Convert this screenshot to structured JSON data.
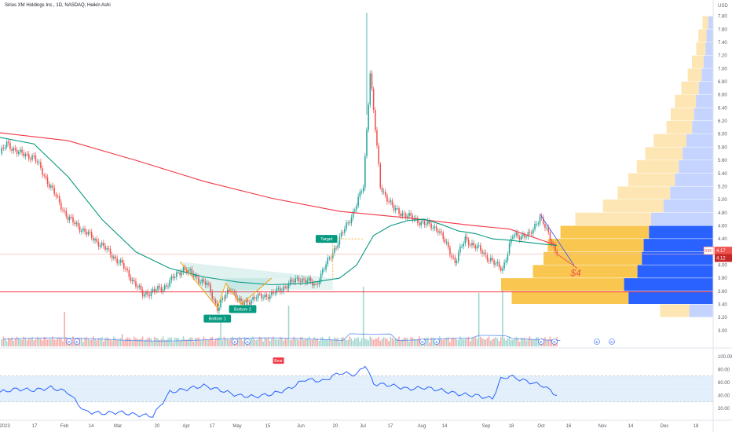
{
  "header": {
    "title": "Sirius XM Holdings Inc., 1D, NASDAQ, Heikin Ashi"
  },
  "colors": {
    "up": "#26a69a",
    "down": "#ef5350",
    "ma_fast": "#089981",
    "ma_slow": "#f23645",
    "volume_ma": "#5b8def",
    "profile_value": "#f9c74f",
    "profile_value_light": "#fde6b3",
    "profile_blue": "#2962ff",
    "profile_blue_light": "#c5d4ff",
    "rsi_line": "#2962ff",
    "rsi_band": "#e3f0fb",
    "support_line": "#f23645",
    "axis_text": "#555b66"
  },
  "chart_data": {
    "type": "candlestick",
    "title": "Sirius XM Holdings Inc., 1D, NASDAQ, Heikin Ashi",
    "currency_label": "USD",
    "price_axis": {
      "range": [
        2.95,
        7.88
      ],
      "ticks": [
        "7.80",
        "7.60",
        "7.40",
        "7.20",
        "7.00",
        "6.80",
        "6.60",
        "6.40",
        "6.20",
        "6.00",
        "5.80",
        "5.60",
        "5.40",
        "5.20",
        "5.00",
        "4.80",
        "4.60",
        "4.40",
        "4.20",
        "4.00",
        "3.80",
        "3.60",
        "3.40",
        "3.20",
        "3.00"
      ]
    },
    "time_axis": {
      "labels": [
        "2023",
        "17",
        "Feb",
        "14",
        "Mar",
        "20",
        "Apr",
        "17",
        "May",
        "15",
        "Jun",
        "20",
        "Jul",
        "17",
        "Aug",
        "14",
        "Sep",
        "18",
        "Oct",
        "16",
        "Nov",
        "14",
        "Dec",
        "18"
      ]
    },
    "symbol_tag": "SIRI",
    "last_price_labels": [
      "4.17",
      "4.12"
    ],
    "support_level": 3.59,
    "segments": [
      {
        "from": 0,
        "to": 4,
        "start": 5.7,
        "end": 5.85
      },
      {
        "from": 4,
        "to": 12,
        "start": 5.85,
        "end": 5.7
      },
      {
        "from": 12,
        "to": 20,
        "start": 5.7,
        "end": 5.65
      },
      {
        "from": 20,
        "to": 40,
        "start": 5.65,
        "end": 4.72
      },
      {
        "from": 40,
        "to": 60,
        "start": 4.72,
        "end": 4.3
      },
      {
        "from": 60,
        "to": 72,
        "start": 4.3,
        "end": 4.0
      },
      {
        "from": 72,
        "to": 84,
        "start": 4.0,
        "end": 3.55
      },
      {
        "from": 84,
        "to": 96,
        "start": 3.55,
        "end": 3.65
      },
      {
        "from": 96,
        "to": 108,
        "start": 3.65,
        "end": 3.95
      },
      {
        "from": 108,
        "to": 122,
        "start": 3.95,
        "end": 3.7
      },
      {
        "from": 122,
        "to": 128,
        "start": 3.7,
        "end": 3.35
      },
      {
        "from": 128,
        "to": 136,
        "start": 3.35,
        "end": 3.65
      },
      {
        "from": 136,
        "to": 142,
        "start": 3.65,
        "end": 3.4
      },
      {
        "from": 142,
        "to": 150,
        "start": 3.4,
        "end": 3.5
      },
      {
        "from": 150,
        "to": 160,
        "start": 3.5,
        "end": 3.55
      },
      {
        "from": 160,
        "to": 176,
        "start": 3.55,
        "end": 3.8
      },
      {
        "from": 176,
        "to": 186,
        "start": 3.8,
        "end": 3.7
      },
      {
        "from": 186,
        "to": 200,
        "start": 3.7,
        "end": 4.4
      },
      {
        "from": 200,
        "to": 208,
        "start": 4.4,
        "end": 4.8
      },
      {
        "from": 208,
        "to": 214,
        "start": 4.8,
        "end": 5.2
      },
      {
        "from": 214,
        "to": 218,
        "start": 5.2,
        "end": 6.95
      },
      {
        "from": 218,
        "to": 224,
        "start": 6.95,
        "end": 5.2
      },
      {
        "from": 224,
        "to": 232,
        "start": 5.2,
        "end": 4.85
      },
      {
        "from": 232,
        "to": 244,
        "start": 4.85,
        "end": 4.7
      },
      {
        "from": 244,
        "to": 258,
        "start": 4.7,
        "end": 4.55
      },
      {
        "from": 258,
        "to": 268,
        "start": 4.55,
        "end": 4.05
      },
      {
        "from": 268,
        "to": 274,
        "start": 4.05,
        "end": 4.4
      },
      {
        "from": 274,
        "to": 284,
        "start": 4.4,
        "end": 4.2
      },
      {
        "from": 284,
        "to": 292,
        "start": 4.2,
        "end": 4.0
      },
      {
        "from": 292,
        "to": 296,
        "start": 4.0,
        "end": 3.95
      },
      {
        "from": 296,
        "to": 302,
        "start": 3.95,
        "end": 4.45
      },
      {
        "from": 302,
        "to": 312,
        "start": 4.45,
        "end": 4.45
      },
      {
        "from": 312,
        "to": 318,
        "start": 4.45,
        "end": 4.75
      },
      {
        "from": 318,
        "to": 328,
        "start": 4.75,
        "end": 4.17
      }
    ],
    "ma_fast": {
      "name": "",
      "x": [
        0,
        20,
        40,
        60,
        80,
        100,
        120,
        140,
        160,
        180,
        200,
        210,
        220,
        230,
        240,
        250,
        260,
        270,
        280,
        290,
        300,
        310,
        320,
        328
      ],
      "y": [
        5.95,
        5.85,
        5.35,
        4.7,
        4.2,
        3.95,
        3.82,
        3.74,
        3.7,
        3.72,
        3.8,
        4.0,
        4.45,
        4.6,
        4.68,
        4.7,
        4.62,
        4.52,
        4.48,
        4.4,
        4.38,
        4.35,
        4.32,
        4.3
      ]
    },
    "ma_slow": {
      "name": "",
      "x": [
        0,
        40,
        80,
        120,
        160,
        200,
        240,
        280,
        300,
        328
      ],
      "y": [
        6.02,
        5.9,
        5.6,
        5.28,
        5.02,
        4.82,
        4.72,
        4.6,
        4.55,
        4.3
      ]
    },
    "patterns": [
      {
        "label": "Bottom 1",
        "x": 128,
        "price": 3.35
      },
      {
        "label": "Bottom 2",
        "x": 142,
        "price": 3.4
      },
      {
        "label": "Target",
        "x": 196,
        "price": 4.4
      }
    ],
    "projection_label": "$4",
    "volume_profile": {
      "bins": [
        {
          "price": 7.7,
          "width": 0.05,
          "value": false
        },
        {
          "price": 7.5,
          "width": 0.07,
          "value": false
        },
        {
          "price": 7.3,
          "width": 0.08,
          "value": false
        },
        {
          "price": 7.1,
          "width": 0.1,
          "value": false
        },
        {
          "price": 6.9,
          "width": 0.12,
          "value": false
        },
        {
          "price": 6.7,
          "width": 0.15,
          "value": false
        },
        {
          "price": 6.5,
          "width": 0.18,
          "value": false
        },
        {
          "price": 6.3,
          "width": 0.2,
          "value": false
        },
        {
          "price": 6.1,
          "width": 0.22,
          "value": false
        },
        {
          "price": 5.9,
          "width": 0.28,
          "value": false
        },
        {
          "price": 5.7,
          "width": 0.32,
          "value": false
        },
        {
          "price": 5.5,
          "width": 0.36,
          "value": false
        },
        {
          "price": 5.3,
          "width": 0.4,
          "value": false
        },
        {
          "price": 5.1,
          "width": 0.45,
          "value": false
        },
        {
          "price": 4.9,
          "width": 0.52,
          "value": false
        },
        {
          "price": 4.7,
          "width": 0.65,
          "value": false
        },
        {
          "price": 4.5,
          "width": 0.72,
          "value": true
        },
        {
          "price": 4.3,
          "width": 0.78,
          "value": true
        },
        {
          "price": 4.1,
          "width": 0.8,
          "value": true
        },
        {
          "price": 3.9,
          "width": 0.85,
          "value": true
        },
        {
          "price": 3.7,
          "width": 1.0,
          "value": true
        },
        {
          "price": 3.5,
          "width": 0.95,
          "value": true
        },
        {
          "price": 3.3,
          "width": 0.25,
          "value": false
        }
      ]
    },
    "rsi": {
      "label": "Bear",
      "axis_ticks": [
        "100.00",
        "80.00",
        "60.00",
        "40.00",
        "20.00"
      ],
      "band": [
        30,
        70
      ],
      "x": [
        0,
        10,
        20,
        30,
        40,
        50,
        60,
        70,
        80,
        90,
        100,
        110,
        120,
        130,
        140,
        150,
        160,
        170,
        180,
        190,
        200,
        210,
        215,
        220,
        230,
        240,
        250,
        260,
        270,
        280,
        290,
        295,
        300,
        310,
        320,
        328
      ],
      "y": [
        45,
        50,
        48,
        52,
        45,
        15,
        12,
        14,
        10,
        8,
        45,
        50,
        55,
        48,
        40,
        38,
        42,
        50,
        65,
        62,
        75,
        72,
        88,
        58,
        56,
        50,
        52,
        48,
        42,
        40,
        35,
        65,
        70,
        62,
        55,
        40
      ]
    },
    "volume": {
      "spikes": [
        {
          "x": 38,
          "h": 0.55
        },
        {
          "x": 170,
          "h": 0.65
        },
        {
          "x": 214,
          "h": 0.95
        },
        {
          "x": 282,
          "h": 0.85
        },
        {
          "x": 296,
          "h": 0.9
        },
        {
          "x": 130,
          "h": 0.45
        },
        {
          "x": 72,
          "h": 0.4
        }
      ]
    }
  }
}
